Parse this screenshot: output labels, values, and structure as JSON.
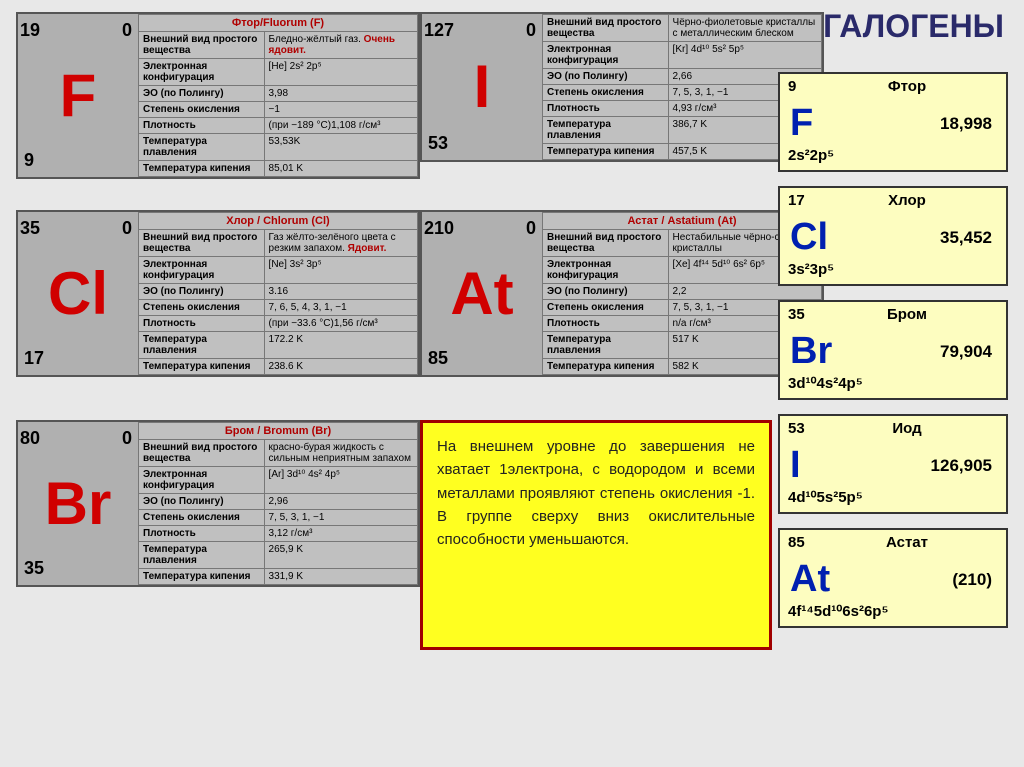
{
  "title": "ГАЛОГЕНЫ",
  "rowLabels": {
    "appearance": "Внешний вид простого вещества",
    "config": "Электронная конфигурация",
    "eo": "ЭО (по Полингу)",
    "oxstates": "Степень окисления",
    "density": "Плотность",
    "melt": "Температура плавления",
    "boil": "Температура кипения"
  },
  "elements": [
    {
      "id": "F",
      "header": "Фтор/Fluorum (F)",
      "symbol": "F",
      "mass": "19",
      "charge": "0",
      "atomic": "9",
      "appearance_plain": "Бледно-жёлтый газ.",
      "appearance_danger": "Очень ядовит.",
      "config": "[He] 2s² 2p⁵",
      "eo": "3,98",
      "oxstates": "−1",
      "density": "(при −189 °C)1,108 г/см³",
      "melt": "53,53K",
      "boil": "85,01 K"
    },
    {
      "id": "Cl",
      "header": "Хлор / Chlorum (Cl)",
      "symbol": "Cl",
      "mass": "35",
      "charge": "0",
      "atomic": "17",
      "appearance_plain": "Газ жёлто-зелёного цвета с резким запахом.",
      "appearance_danger": "Ядовит.",
      "config": "[Ne] 3s² 3p⁵",
      "eo": "3.16",
      "oxstates": "7, 6, 5, 4, 3, 1, −1",
      "density": "(при −33.6 °C)1,56 г/см³",
      "melt": "172.2 K",
      "boil": "238.6 K"
    },
    {
      "id": "Br",
      "header": "Бром / Bromum (Br)",
      "symbol": "Br",
      "mass": "80",
      "charge": "0",
      "atomic": "35",
      "appearance_plain": "красно-бурая жидкость с сильным неприятным запахом",
      "appearance_danger": "",
      "config": "[Ar] 3d¹⁰ 4s² 4p⁵",
      "eo": "2,96",
      "oxstates": "7, 5, 3, 1, −1",
      "density": "3,12 г/см³",
      "melt": "265,9 K",
      "boil": "331,9 K"
    },
    {
      "id": "I",
      "header": "",
      "symbol": "I",
      "mass": "127",
      "charge": "0",
      "atomic": "53",
      "appearance_plain": "Чёрно-фиолетовые кристаллы с металлическим блеском",
      "appearance_danger": "",
      "config": "[Kr] 4d¹⁰ 5s² 5p⁵",
      "eo": "2,66",
      "oxstates": "7, 5, 3, 1, −1",
      "density": "4,93 г/см³",
      "melt": "386,7 K",
      "boil": "457,5 K"
    },
    {
      "id": "At",
      "header": "Астат / Astatium (At)",
      "symbol": "At",
      "mass": "210",
      "charge": "0",
      "atomic": "85",
      "appearance_plain": "Нестабильные чёрно-синие кристаллы",
      "appearance_danger": "",
      "config": "[Xe] 4f¹⁴ 5d¹⁰ 6s² 6p⁵",
      "eo": "2,2",
      "oxstates": "7, 5, 3, 1, −1",
      "density": "n/a г/см³",
      "melt": "517 K",
      "boil": "582 K"
    }
  ],
  "periodic": [
    {
      "num": "9",
      "name": "Фтор",
      "symbol": "F",
      "mass": "18,998",
      "config": "2s²2p⁵"
    },
    {
      "num": "17",
      "name": "Хлор",
      "symbol": "Cl",
      "mass": "35,452",
      "config": "3s²3p⁵"
    },
    {
      "num": "35",
      "name": "Бром",
      "symbol": "Br",
      "mass": "79,904",
      "config": "3d¹⁰4s²4p⁵"
    },
    {
      "num": "53",
      "name": "Иод",
      "symbol": "I",
      "mass": "126,905",
      "config": "4d¹⁰5s²5p⁵"
    },
    {
      "num": "85",
      "name": "Астат",
      "symbol": "At",
      "mass": "(210)",
      "config": "4f¹⁴5d¹⁰6s²6p⁵"
    }
  ],
  "note": "На внешнем уровне до завершения не хватает 1электрона, с водородом и всеми металлами проявляют степень окисления -1. В группе сверху вниз окислительные способности уменьшаются."
}
